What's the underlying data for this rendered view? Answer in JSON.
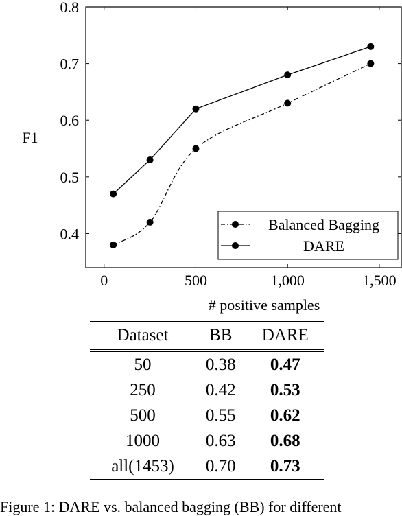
{
  "chart_data": {
    "type": "line",
    "xlabel": "# positive samples",
    "ylabel": "F1",
    "xlim": [
      -100,
      1620
    ],
    "ylim": [
      0.34,
      0.8
    ],
    "x_ticks": [
      0,
      500,
      1000,
      1500
    ],
    "x_tick_labels": [
      "0",
      "500",
      "1,000",
      "1,500"
    ],
    "y_ticks": [
      0.4,
      0.5,
      0.6,
      0.7,
      0.8
    ],
    "y_tick_labels": [
      "0.4",
      "0.5",
      "0.6",
      "0.7",
      "0.8"
    ],
    "legend_position": "bottom-right",
    "grid": false,
    "series": [
      {
        "name": "Balanced Bagging",
        "style": "dash-dot",
        "smooth": true,
        "x": [
          50,
          250,
          500,
          1000,
          1453
        ],
        "y": [
          0.38,
          0.42,
          0.55,
          0.63,
          0.7
        ]
      },
      {
        "name": "DARE",
        "style": "solid",
        "smooth": false,
        "x": [
          50,
          250,
          500,
          1000,
          1453
        ],
        "y": [
          0.47,
          0.53,
          0.62,
          0.68,
          0.73
        ]
      }
    ]
  },
  "table": {
    "headers": [
      "Dataset",
      "BB",
      "DARE"
    ],
    "rows": [
      [
        "50",
        "0.38",
        "0.47"
      ],
      [
        "250",
        "0.42",
        "0.53"
      ],
      [
        "500",
        "0.55",
        "0.62"
      ],
      [
        "1000",
        "0.63",
        "0.68"
      ],
      [
        "all(1453)",
        "0.70",
        "0.73"
      ]
    ]
  },
  "caption": "Figure 1: DARE vs. balanced bagging (BB) for different"
}
